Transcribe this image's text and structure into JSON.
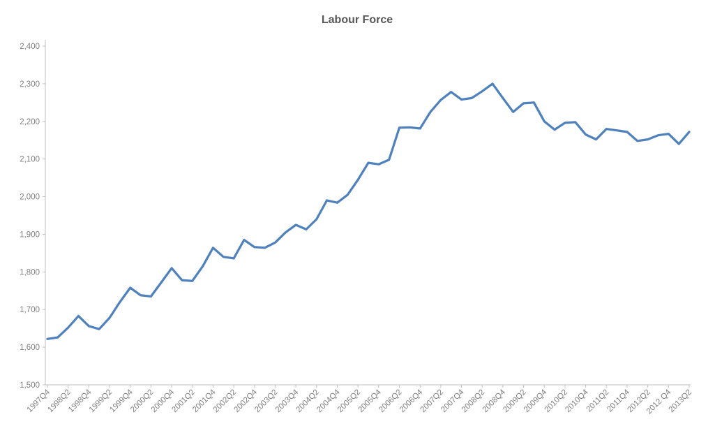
{
  "chart_data": {
    "type": "line",
    "title": "Labour Force",
    "categories": [
      "1997Q4",
      "1998Q1",
      "1998Q2",
      "1998Q3",
      "1998Q4",
      "1999Q1",
      "1999Q2",
      "1999Q3",
      "1999Q4",
      "2000Q1",
      "2000Q2",
      "2000Q3",
      "2000Q4",
      "2001Q1",
      "2001Q2",
      "2001Q3",
      "2001Q4",
      "2002Q1",
      "2002Q2",
      "2002Q3",
      "2002Q4",
      "2003Q1",
      "2003Q2",
      "2003Q3",
      "2003Q4",
      "2004Q1",
      "2004Q2",
      "2004Q3",
      "2004Q4",
      "2005Q1",
      "2005Q2",
      "2005Q3",
      "2005Q4",
      "2006Q1",
      "2006Q2",
      "2006Q3",
      "2006Q4",
      "2007Q1",
      "2007Q2",
      "2007Q3",
      "2007Q4",
      "2008Q1",
      "2008Q2",
      "2008Q3",
      "2008Q4",
      "2009Q1",
      "2009Q2",
      "2009Q3",
      "2009Q4",
      "2010Q1",
      "2010Q2",
      "2010Q3",
      "2010Q4",
      "2011Q1",
      "2011Q2",
      "2011Q3",
      "2011Q4",
      "2012Q1",
      "2012Q2",
      "2012Q3",
      "2012Q4",
      "2013Q1",
      "2013Q2"
    ],
    "values": [
      1622,
      1626,
      1652,
      1683,
      1656,
      1648,
      1678,
      1720,
      1758,
      1738,
      1735,
      1772,
      1810,
      1778,
      1776,
      1815,
      1864,
      1840,
      1836,
      1885,
      1866,
      1864,
      1878,
      1905,
      1925,
      1913,
      1940,
      1990,
      1984,
      2005,
      2045,
      2090,
      2086,
      2098,
      2183,
      2184,
      2181,
      2225,
      2257,
      2278,
      2258,
      2262,
      2280,
      2300,
      2262,
      2225,
      2248,
      2250,
      2200,
      2178,
      2196,
      2198,
      2165,
      2152,
      2180,
      2176,
      2172,
      2148,
      2152,
      2163,
      2167,
      2140,
      2172
    ],
    "series_name": "Labour Force",
    "xlabel": "",
    "ylabel": "",
    "ylim": [
      1500,
      2400
    ],
    "ytick_step": 100,
    "ytick_labels": [
      "1,500",
      "1,600",
      "1,700",
      "1,800",
      "1,900",
      "2,000",
      "2,100",
      "2,200",
      "2,300",
      "2,400"
    ],
    "xtick_labels": [
      "1997Q4",
      "1998Q2",
      "1998Q4",
      "1999Q2",
      "1999Q4",
      "2000Q2",
      "2000Q4",
      "2001Q2",
      "2001Q4",
      "2002Q2",
      "2002Q4",
      "2003Q2",
      "2003Q4",
      "2004Q2",
      "2004Q4",
      "2005Q2",
      "2005Q4",
      "2006Q2",
      "2006Q4",
      "2007Q2",
      "2007Q4",
      "2008Q2",
      "2008Q4",
      "2009Q2",
      "2009Q4",
      "2010Q2",
      "2010Q4",
      "2011Q2",
      "2011Q4",
      "2012Q2",
      "2012 Q4",
      "2013Q2"
    ],
    "xtick_every": 2,
    "grid": "off",
    "legend": "none",
    "line_color": "#4f81bd",
    "axis_color": "#bfbfbf",
    "label_color": "#7f7f7f",
    "title_color": "#595959"
  }
}
